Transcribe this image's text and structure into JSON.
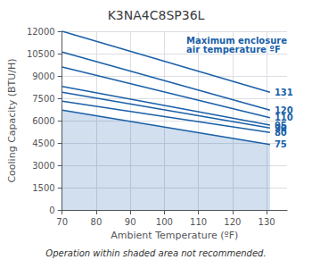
{
  "chart_data": {
    "type": "line",
    "title": "K3NA4C8SP36L",
    "subtitle": "Maximum enclosure\nair temperature ºF",
    "xlabel": "Ambient Temperature (ºF)",
    "ylabel": "Cooling Capacity (BTU/H)",
    "color": "#1a5fa8",
    "grid": true,
    "x": [
      70,
      131
    ],
    "xlim": [
      70,
      136
    ],
    "xticks": [
      70,
      80,
      90,
      100,
      110,
      120,
      130
    ],
    "ylim": [
      0,
      12000
    ],
    "yticks": [
      0,
      1500,
      3000,
      4500,
      6000,
      7500,
      9000,
      10500,
      12000
    ],
    "series": [
      {
        "name": "131",
        "values": [
          12000,
          7900
        ]
      },
      {
        "name": "120",
        "values": [
          10600,
          6700
        ]
      },
      {
        "name": "110",
        "values": [
          9600,
          6200
        ]
      },
      {
        "name": "95",
        "values": [
          8300,
          5700
        ]
      },
      {
        "name": "90",
        "values": [
          7900,
          5500
        ]
      },
      {
        "name": "80",
        "values": [
          7300,
          5200
        ]
      },
      {
        "name": "75",
        "type": "area",
        "values": [
          6700,
          4400
        ]
      }
    ],
    "annotations": [
      {
        "text": "Operation within shaded area not recommended."
      }
    ]
  }
}
